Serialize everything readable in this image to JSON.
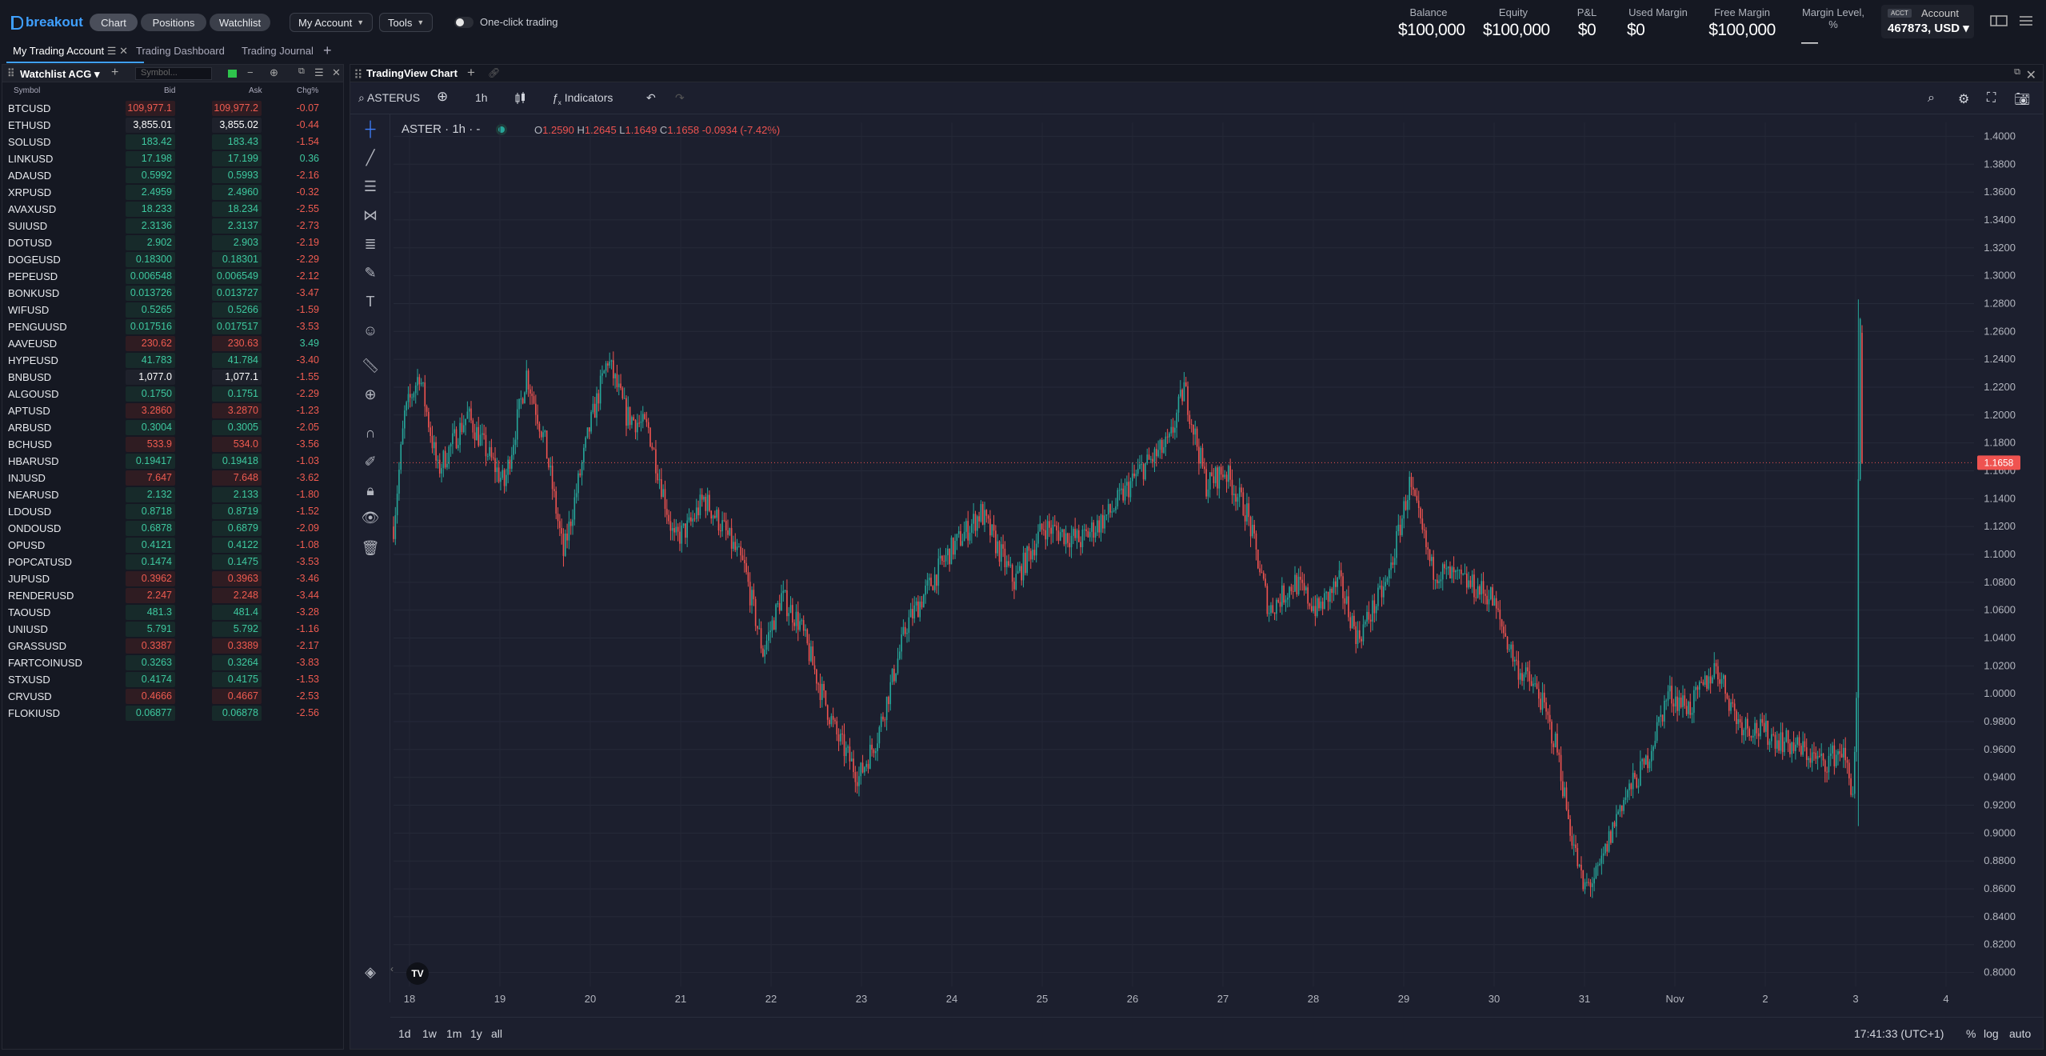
{
  "app": {
    "brand": "breakout",
    "nav_tabs": [
      "Chart",
      "Positions",
      "Watchlist"
    ],
    "menus": [
      "My Account",
      "Tools"
    ],
    "one_click_label": "One-click trading",
    "stats": [
      {
        "label": "Balance",
        "value": "$100,000"
      },
      {
        "label": "Equity",
        "value": "$100,000"
      },
      {
        "label": "P&L",
        "value": "$0"
      },
      {
        "label": "Used Margin",
        "value": "$0"
      },
      {
        "label": "Free Margin",
        "value": "$100,000"
      },
      {
        "label": "Margin Level, %",
        "value": "—"
      }
    ],
    "account": {
      "tag": "ACCT",
      "label": "Account",
      "value": "467873, USD"
    }
  },
  "workspace_tabs": [
    "My Trading Account",
    "Trading Dashboard",
    "Trading Journal"
  ],
  "watchlist": {
    "title": "Watchlist ACG",
    "symbol_placeholder": "Symbol...",
    "columns": [
      "Symbol",
      "Bid",
      "Ask",
      "Chg%"
    ],
    "rows": [
      {
        "s": "BTCUSD",
        "bid": "109,977.1",
        "ask": "109,977.2",
        "chg": "-0.07",
        "dir": "dn"
      },
      {
        "s": "ETHUSD",
        "bid": "3,855.01",
        "ask": "3,855.02",
        "chg": "-0.44",
        "dir": "ne"
      },
      {
        "s": "SOLUSD",
        "bid": "183.42",
        "ask": "183.43",
        "chg": "-1.54",
        "dir": "up"
      },
      {
        "s": "LINKUSD",
        "bid": "17.198",
        "ask": "17.199",
        "chg": "0.36",
        "dir": "up"
      },
      {
        "s": "ADAUSD",
        "bid": "0.5992",
        "ask": "0.5993",
        "chg": "-2.16",
        "dir": "up"
      },
      {
        "s": "XRPUSD",
        "bid": "2.4959",
        "ask": "2.4960",
        "chg": "-0.32",
        "dir": "up"
      },
      {
        "s": "AVAXUSD",
        "bid": "18.233",
        "ask": "18.234",
        "chg": "-2.55",
        "dir": "up"
      },
      {
        "s": "SUIUSD",
        "bid": "2.3136",
        "ask": "2.3137",
        "chg": "-2.73",
        "dir": "up"
      },
      {
        "s": "DOTUSD",
        "bid": "2.902",
        "ask": "2.903",
        "chg": "-2.19",
        "dir": "up"
      },
      {
        "s": "DOGEUSD",
        "bid": "0.18300",
        "ask": "0.18301",
        "chg": "-2.29",
        "dir": "up"
      },
      {
        "s": "PEPEUSD",
        "bid": "0.006548",
        "ask": "0.006549",
        "chg": "-2.12",
        "dir": "up"
      },
      {
        "s": "BONKUSD",
        "bid": "0.013726",
        "ask": "0.013727",
        "chg": "-3.47",
        "dir": "up"
      },
      {
        "s": "WIFUSD",
        "bid": "0.5265",
        "ask": "0.5266",
        "chg": "-1.59",
        "dir": "up"
      },
      {
        "s": "PENGUUSD",
        "bid": "0.017516",
        "ask": "0.017517",
        "chg": "-3.53",
        "dir": "up"
      },
      {
        "s": "AAVEUSD",
        "bid": "230.62",
        "ask": "230.63",
        "chg": "3.49",
        "dir": "dn"
      },
      {
        "s": "HYPEUSD",
        "bid": "41.783",
        "ask": "41.784",
        "chg": "-3.40",
        "dir": "up"
      },
      {
        "s": "BNBUSD",
        "bid": "1,077.0",
        "ask": "1,077.1",
        "chg": "-1.55",
        "dir": "ne"
      },
      {
        "s": "ALGOUSD",
        "bid": "0.1750",
        "ask": "0.1751",
        "chg": "-2.29",
        "dir": "up"
      },
      {
        "s": "APTUSD",
        "bid": "3.2860",
        "ask": "3.2870",
        "chg": "-1.23",
        "dir": "dn"
      },
      {
        "s": "ARBUSD",
        "bid": "0.3004",
        "ask": "0.3005",
        "chg": "-2.05",
        "dir": "up"
      },
      {
        "s": "BCHUSD",
        "bid": "533.9",
        "ask": "534.0",
        "chg": "-3.56",
        "dir": "dn"
      },
      {
        "s": "HBARUSD",
        "bid": "0.19417",
        "ask": "0.19418",
        "chg": "-1.03",
        "dir": "up"
      },
      {
        "s": "INJUSD",
        "bid": "7.647",
        "ask": "7.648",
        "chg": "-3.62",
        "dir": "dn"
      },
      {
        "s": "NEARUSD",
        "bid": "2.132",
        "ask": "2.133",
        "chg": "-1.80",
        "dir": "up"
      },
      {
        "s": "LDOUSD",
        "bid": "0.8718",
        "ask": "0.8719",
        "chg": "-1.52",
        "dir": "up"
      },
      {
        "s": "ONDOUSD",
        "bid": "0.6878",
        "ask": "0.6879",
        "chg": "-2.09",
        "dir": "up"
      },
      {
        "s": "OPUSD",
        "bid": "0.4121",
        "ask": "0.4122",
        "chg": "-1.08",
        "dir": "up"
      },
      {
        "s": "POPCATUSD",
        "bid": "0.1474",
        "ask": "0.1475",
        "chg": "-3.53",
        "dir": "up"
      },
      {
        "s": "JUPUSD",
        "bid": "0.3962",
        "ask": "0.3963",
        "chg": "-3.46",
        "dir": "dn"
      },
      {
        "s": "RENDERUSD",
        "bid": "2.247",
        "ask": "2.248",
        "chg": "-3.44",
        "dir": "dn"
      },
      {
        "s": "TAOUSD",
        "bid": "481.3",
        "ask": "481.4",
        "chg": "-3.28",
        "dir": "up"
      },
      {
        "s": "UNIUSD",
        "bid": "5.791",
        "ask": "5.792",
        "chg": "-1.16",
        "dir": "up"
      },
      {
        "s": "GRASSUSD",
        "bid": "0.3387",
        "ask": "0.3389",
        "chg": "-2.17",
        "dir": "dn"
      },
      {
        "s": "FARTCOINUSD",
        "bid": "0.3263",
        "ask": "0.3264",
        "chg": "-3.83",
        "dir": "up"
      },
      {
        "s": "STXUSD",
        "bid": "0.4174",
        "ask": "0.4175",
        "chg": "-1.53",
        "dir": "up"
      },
      {
        "s": "CRVUSD",
        "bid": "0.4666",
        "ask": "0.4667",
        "chg": "-2.53",
        "dir": "dn"
      },
      {
        "s": "FLOKIUSD",
        "bid": "0.06877",
        "ask": "0.06878",
        "chg": "-2.56",
        "dir": "up"
      }
    ]
  },
  "chart": {
    "panel_title": "TradingView Chart",
    "symbol": "ASTERUS",
    "interval": "1h",
    "indicators_label": "Indicators",
    "legend_title": "ASTER · 1h · -",
    "ohlc": {
      "O": "1.2590",
      "H": "1.2645",
      "L": "1.1649",
      "C": "1.1658",
      "change": "-0.0934 (-7.42%)"
    },
    "current_price": "1.1658",
    "timeframes": [
      "1d",
      "1w",
      "1m",
      "1y",
      "all"
    ],
    "clock": "17:41:33 (UTC+1)",
    "scale_opts": [
      "%",
      "log",
      "auto"
    ],
    "colors": {
      "up": "#26a69a",
      "down": "#ef5350",
      "background": "#1c1f2e"
    }
  },
  "chart_data": {
    "type": "candlestick",
    "ylim": [
      0.79,
      1.41
    ],
    "y_ticks": [
      "1.4000",
      "1.3800",
      "1.3600",
      "1.3400",
      "1.3200",
      "1.3000",
      "1.2800",
      "1.2600",
      "1.2400",
      "1.2200",
      "1.2000",
      "1.1800",
      "1.1600",
      "1.1400",
      "1.1200",
      "1.1000",
      "1.0800",
      "1.0600",
      "1.0400",
      "1.0200",
      "1.0000",
      "0.9800",
      "0.9600",
      "0.9400",
      "0.9200",
      "0.9000",
      "0.8800",
      "0.8600",
      "0.8400",
      "0.8200",
      "0.8000"
    ],
    "x_ticks": [
      "18",
      "19",
      "20",
      "21",
      "22",
      "23",
      "24",
      "25",
      "26",
      "27",
      "28",
      "29",
      "30",
      "31",
      "Nov",
      "2",
      "3",
      "4"
    ],
    "trend": [
      [
        0,
        1.12
      ],
      [
        6,
        1.2
      ],
      [
        14,
        1.23
      ],
      [
        24,
        1.16
      ],
      [
        40,
        1.2
      ],
      [
        60,
        1.15
      ],
      [
        72,
        1.23
      ],
      [
        82,
        1.18
      ],
      [
        92,
        1.1
      ],
      [
        106,
        1.19
      ],
      [
        116,
        1.24
      ],
      [
        126,
        1.2
      ],
      [
        138,
        1.19
      ],
      [
        152,
        1.11
      ],
      [
        160,
        1.12
      ],
      [
        168,
        1.14
      ],
      [
        178,
        1.12
      ],
      [
        190,
        1.09
      ],
      [
        200,
        1.03
      ],
      [
        210,
        1.07
      ],
      [
        220,
        1.05
      ],
      [
        232,
        1.0
      ],
      [
        240,
        0.97
      ],
      [
        252,
        0.94
      ],
      [
        262,
        0.97
      ],
      [
        278,
        1.05
      ],
      [
        300,
        1.1
      ],
      [
        318,
        1.13
      ],
      [
        336,
        1.08
      ],
      [
        352,
        1.12
      ],
      [
        372,
        1.11
      ],
      [
        388,
        1.13
      ],
      [
        404,
        1.16
      ],
      [
        420,
        1.18
      ],
      [
        428,
        1.22
      ],
      [
        440,
        1.15
      ],
      [
        450,
        1.16
      ],
      [
        462,
        1.13
      ],
      [
        474,
        1.06
      ],
      [
        488,
        1.08
      ],
      [
        500,
        1.06
      ],
      [
        512,
        1.08
      ],
      [
        522,
        1.04
      ],
      [
        538,
        1.08
      ],
      [
        550,
        1.15
      ],
      [
        562,
        1.09
      ],
      [
        580,
        1.08
      ],
      [
        594,
        1.07
      ],
      [
        608,
        1.02
      ],
      [
        620,
        1.0
      ],
      [
        630,
        0.96
      ],
      [
        636,
        0.91
      ],
      [
        644,
        0.86
      ],
      [
        652,
        0.87
      ],
      [
        664,
        0.92
      ],
      [
        678,
        0.95
      ],
      [
        690,
        1.0
      ],
      [
        702,
        0.99
      ],
      [
        716,
        1.02
      ],
      [
        728,
        0.98
      ],
      [
        746,
        0.97
      ],
      [
        762,
        0.96
      ],
      [
        774,
        0.95
      ],
      [
        784,
        0.96
      ],
      [
        790,
        0.93
      ],
      [
        792,
        0.99
      ],
      [
        793,
        1.15
      ],
      [
        794,
        1.26
      ],
      [
        795,
        1.1658
      ]
    ],
    "bars": 796
  }
}
